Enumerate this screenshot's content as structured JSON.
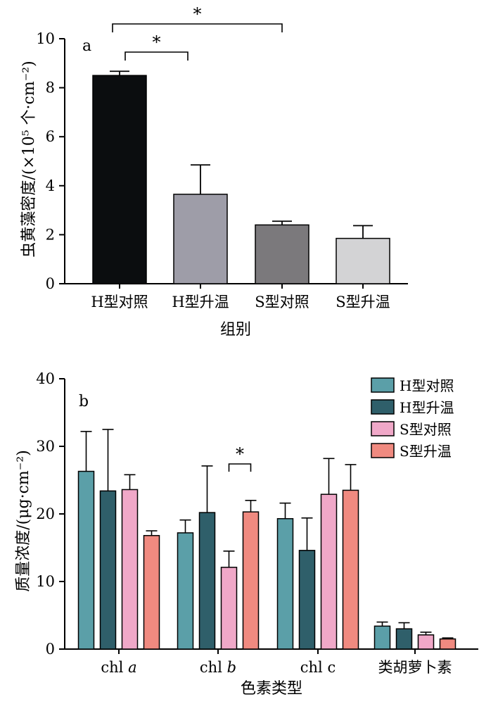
{
  "chart_data": [
    {
      "type": "bar",
      "panel_label": "a",
      "xlabel": "组别",
      "ylabel": "虫黄藻密度/(×10⁵ 个·cm⁻²)",
      "ylim": [
        0,
        10
      ],
      "yticks": [
        "0",
        "2",
        "4",
        "6",
        "8",
        "10"
      ],
      "categories": [
        "H型对照",
        "H型升温",
        "S型对照",
        "S型升温"
      ],
      "values": [
        8.5,
        3.65,
        2.4,
        1.85
      ],
      "errors": [
        0.17,
        1.2,
        0.15,
        0.52
      ],
      "colors": [
        "#0b0d0f",
        "#9e9da8",
        "#7b797c",
        "#d3d3d5"
      ],
      "significance": [
        {
          "from": 0,
          "to": 1,
          "label": "*"
        },
        {
          "from": 0,
          "to": 2,
          "label": "*"
        }
      ]
    },
    {
      "type": "bar",
      "panel_label": "b",
      "xlabel": "色素类型",
      "ylabel": "质量浓度/(μg·cm⁻²)",
      "ylim": [
        0,
        40
      ],
      "yticks": [
        "0",
        "10",
        "20",
        "30",
        "40"
      ],
      "categories": [
        "chl a",
        "chl b",
        "chl c",
        "类胡萝卜素"
      ],
      "category_labels": [
        {
          "main": "chl ",
          "italic": "a"
        },
        {
          "main": "chl ",
          "italic": "b"
        },
        {
          "main": "chl c",
          "italic": ""
        },
        {
          "main": "类胡萝卜素",
          "italic": ""
        }
      ],
      "series": [
        {
          "name": "H型对照",
          "color": "#5b9fa8",
          "values": [
            26.3,
            17.2,
            19.3,
            3.4
          ],
          "errors": [
            5.9,
            1.9,
            2.3,
            0.6
          ]
        },
        {
          "name": "H型升温",
          "color": "#2f5f6a",
          "values": [
            23.4,
            20.2,
            14.6,
            3.0
          ],
          "errors": [
            9.1,
            6.9,
            4.8,
            0.9
          ]
        },
        {
          "name": "S型对照",
          "color": "#f0a8c8",
          "values": [
            23.6,
            12.1,
            22.9,
            2.1
          ],
          "errors": [
            2.2,
            2.4,
            5.3,
            0.4
          ]
        },
        {
          "name": "S型升温",
          "color": "#f08a80",
          "values": [
            16.8,
            20.3,
            23.5,
            1.5
          ],
          "errors": [
            0.7,
            1.7,
            3.8,
            0.15
          ]
        }
      ],
      "legend_position": "top-right",
      "significance": [
        {
          "category": 1,
          "from_series": 2,
          "to_series": 3,
          "label": "*"
        }
      ]
    }
  ]
}
